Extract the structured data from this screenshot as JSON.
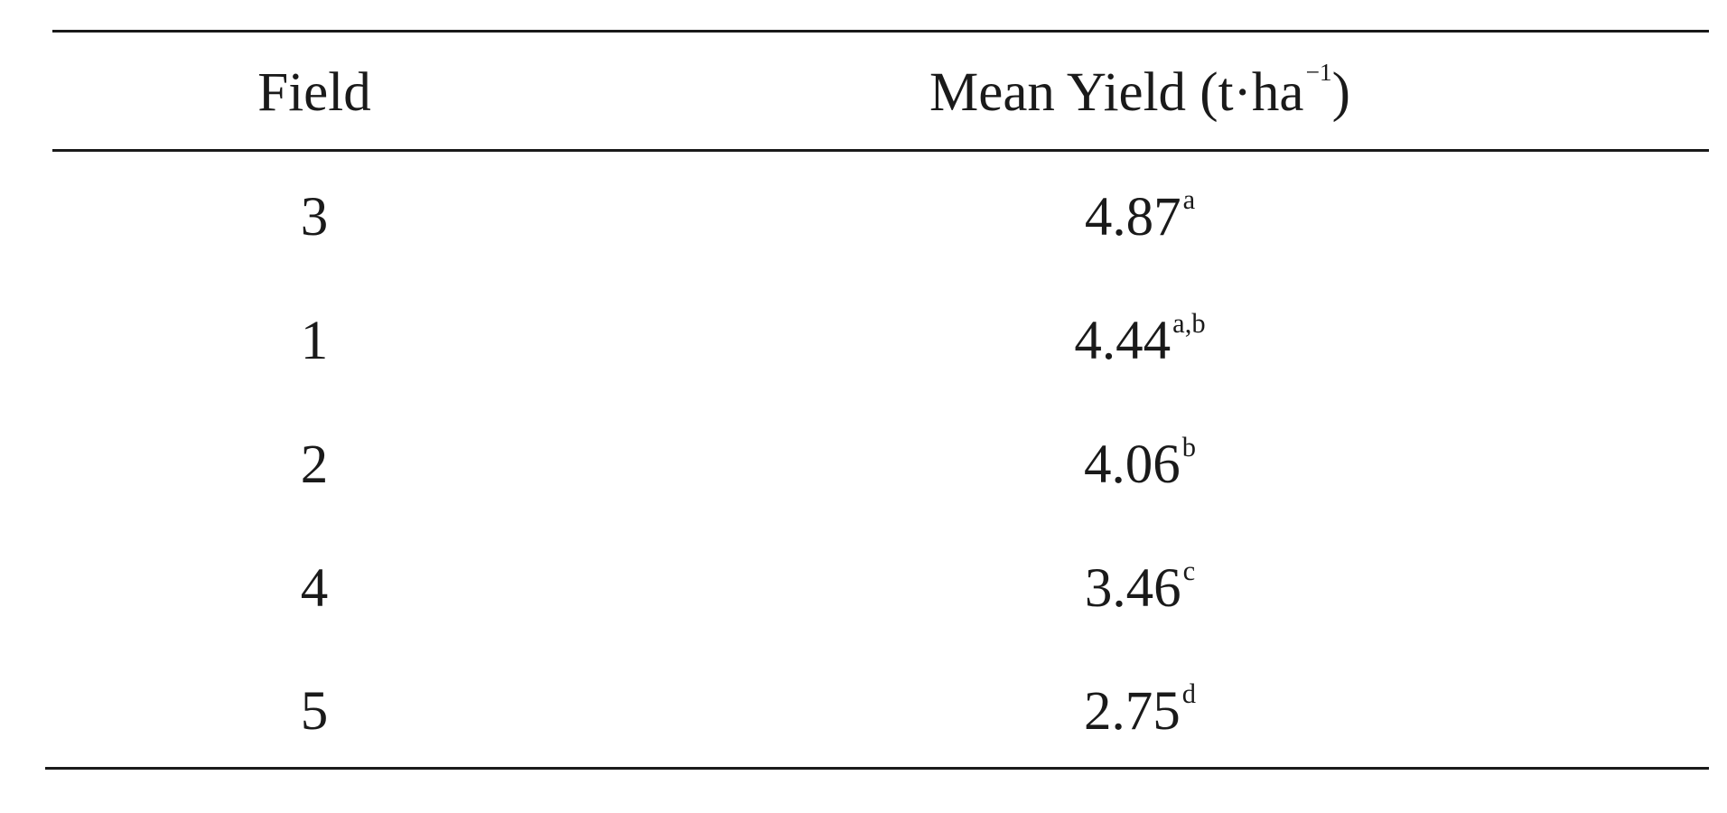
{
  "table": {
    "headers": {
      "field": "Field",
      "yield_main": "Mean Yield (t·ha",
      "yield_exponent": "−1",
      "yield_close": ")"
    },
    "rows": [
      {
        "field": "3",
        "yield": "4.87",
        "group": "a"
      },
      {
        "field": "1",
        "yield": "4.44",
        "group": "a,b"
      },
      {
        "field": "2",
        "yield": "4.06",
        "group": "b"
      },
      {
        "field": "4",
        "yield": "3.46",
        "group": "c"
      },
      {
        "field": "5",
        "yield": "2.75",
        "group": "d"
      }
    ]
  }
}
